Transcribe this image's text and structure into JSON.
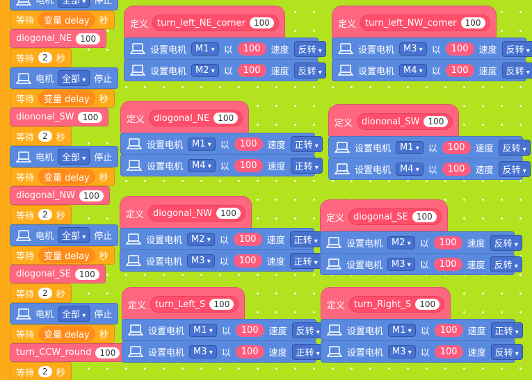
{
  "sequence": [
    {
      "kind": "motor",
      "text": [
        "电机",
        "全部",
        "停止"
      ]
    },
    {
      "kind": "wait_var",
      "text": [
        "等待",
        "变量 delay",
        "秒"
      ]
    },
    {
      "kind": "call",
      "name": "diogonal_NE",
      "value": 100
    },
    {
      "kind": "wait_num",
      "text": [
        "等待",
        "秒"
      ],
      "value": 2
    },
    {
      "kind": "motor",
      "text": [
        "电机",
        "全部",
        "停止"
      ]
    },
    {
      "kind": "wait_var",
      "text": [
        "等待",
        "变量 delay",
        "秒"
      ]
    },
    {
      "kind": "call",
      "name": "diononal_SW",
      "value": 100
    },
    {
      "kind": "wait_num",
      "text": [
        "等待",
        "秒"
      ],
      "value": 2
    },
    {
      "kind": "motor",
      "text": [
        "电机",
        "全部",
        "停止"
      ]
    },
    {
      "kind": "wait_var",
      "text": [
        "等待",
        "变量 delay",
        "秒"
      ]
    },
    {
      "kind": "call",
      "name": "diogonal_NW",
      "value": 100
    },
    {
      "kind": "wait_num",
      "text": [
        "等待",
        "秒"
      ],
      "value": 2
    },
    {
      "kind": "motor",
      "text": [
        "电机",
        "全部",
        "停止"
      ]
    },
    {
      "kind": "wait_var",
      "text": [
        "等待",
        "变量 delay",
        "秒"
      ]
    },
    {
      "kind": "call",
      "name": "diogonal_SE",
      "value": 100
    },
    {
      "kind": "wait_num",
      "text": [
        "等待",
        "秒"
      ],
      "value": 2
    },
    {
      "kind": "motor",
      "text": [
        "电机",
        "全部",
        "停止"
      ]
    },
    {
      "kind": "wait_var",
      "text": [
        "等待",
        "变量 delay",
        "秒"
      ]
    },
    {
      "kind": "call",
      "name": "turn_CCW_round",
      "value": 100
    },
    {
      "kind": "wait_num",
      "text": [
        "等待",
        "秒"
      ],
      "value": 2
    }
  ],
  "definitions": [
    {
      "define": "定义",
      "name": "turn_left_NE_corner",
      "arg": 100,
      "rows": [
        {
          "label": "设置电机",
          "motor": "M1",
          "by": "以",
          "speed": 100,
          "speed_label": "速度",
          "direction": "反转"
        },
        {
          "label": "设置电机",
          "motor": "M2",
          "by": "以",
          "speed": 100,
          "speed_label": "速度",
          "direction": "反转"
        }
      ]
    },
    {
      "define": "定义",
      "name": "turn_left_NW_corner",
      "arg": 100,
      "rows": [
        {
          "label": "设置电机",
          "motor": "M3",
          "by": "以",
          "speed": 100,
          "speed_label": "速度",
          "direction": "反转"
        },
        {
          "label": "设置电机",
          "motor": "M4",
          "by": "以",
          "speed": 100,
          "speed_label": "速度",
          "direction": "反转"
        }
      ]
    },
    {
      "define": "定义",
      "name": "diogonal_NE",
      "arg": 100,
      "rows": [
        {
          "label": "设置电机",
          "motor": "M1",
          "by": "以",
          "speed": 100,
          "speed_label": "速度",
          "direction": "正转"
        },
        {
          "label": "设置电机",
          "motor": "M4",
          "by": "以",
          "speed": 100,
          "speed_label": "速度",
          "direction": "正转"
        }
      ]
    },
    {
      "define": "定义",
      "name": "diononal_SW",
      "arg": 100,
      "rows": [
        {
          "label": "设置电机",
          "motor": "M1",
          "by": "以",
          "speed": 100,
          "speed_label": "速度",
          "direction": "反转"
        },
        {
          "label": "设置电机",
          "motor": "M4",
          "by": "以",
          "speed": 100,
          "speed_label": "速度",
          "direction": "反转"
        }
      ]
    },
    {
      "define": "定义",
      "name": "diogonal_NW",
      "arg": 100,
      "rows": [
        {
          "label": "设置电机",
          "motor": "M2",
          "by": "以",
          "speed": 100,
          "speed_label": "速度",
          "direction": "正转"
        },
        {
          "label": "设置电机",
          "motor": "M3",
          "by": "以",
          "speed": 100,
          "speed_label": "速度",
          "direction": "正转"
        }
      ]
    },
    {
      "define": "定义",
      "name": "diogonal_SE",
      "arg": 100,
      "rows": [
        {
          "label": "设置电机",
          "motor": "M2",
          "by": "以",
          "speed": 100,
          "speed_label": "速度",
          "direction": "反转"
        },
        {
          "label": "设置电机",
          "motor": "M3",
          "by": "以",
          "speed": 100,
          "speed_label": "速度",
          "direction": "反转"
        }
      ]
    },
    {
      "define": "定义",
      "name": "turn_Left_S",
      "arg": 100,
      "rows": [
        {
          "label": "设置电机",
          "motor": "M1",
          "by": "以",
          "speed": 100,
          "speed_label": "速度",
          "direction": "反转"
        },
        {
          "label": "设置电机",
          "motor": "M3",
          "by": "以",
          "speed": 100,
          "speed_label": "速度",
          "direction": "正转"
        }
      ]
    },
    {
      "define": "定义",
      "name": "turn_Right_S",
      "arg": 100,
      "rows": [
        {
          "label": "设置电机",
          "motor": "M1",
          "by": "以",
          "speed": 100,
          "speed_label": "速度",
          "direction": "正转"
        },
        {
          "label": "设置电机",
          "motor": "M3",
          "by": "以",
          "speed": 100,
          "speed_label": "速度",
          "direction": "反转"
        }
      ]
    }
  ]
}
